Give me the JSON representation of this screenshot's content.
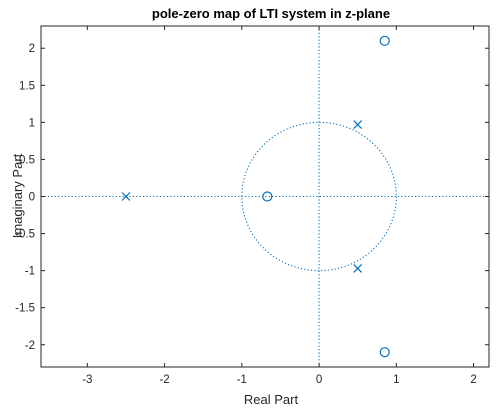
{
  "chart_data": {
    "type": "scatter",
    "title": "pole-zero map of LTI system in z-plane",
    "xlabel": "Real Part",
    "ylabel": "Imaginary Part",
    "xlim": [
      -3.6,
      2.2
    ],
    "ylim": [
      -2.3,
      2.3
    ],
    "xticks": [
      -3,
      -2,
      -1,
      0,
      1,
      2
    ],
    "xtick_labels": [
      "-3",
      "-2",
      "-1",
      "0",
      "1",
      "2"
    ],
    "yticks": [
      2,
      1.5,
      1,
      0.5,
      0,
      -0.5,
      -1,
      -1.5,
      -2
    ],
    "ytick_labels": [
      "2",
      "1.5",
      "1",
      "0.5",
      "0",
      "-0.5",
      "-1",
      "-1.5",
      "-2"
    ],
    "grid": false,
    "color": "#0072BD",
    "unit_circle": true,
    "series": [
      {
        "marker": "x",
        "points": [
          {
            "x": -2.5,
            "y": 0
          },
          {
            "x": 0.5,
            "y": 0.97
          },
          {
            "x": 0.5,
            "y": -0.97
          }
        ]
      },
      {
        "marker": "o",
        "points": [
          {
            "x": -0.67,
            "y": 0
          },
          {
            "x": 0.85,
            "y": 2.1
          },
          {
            "x": 0.85,
            "y": -2.1
          }
        ]
      }
    ]
  }
}
